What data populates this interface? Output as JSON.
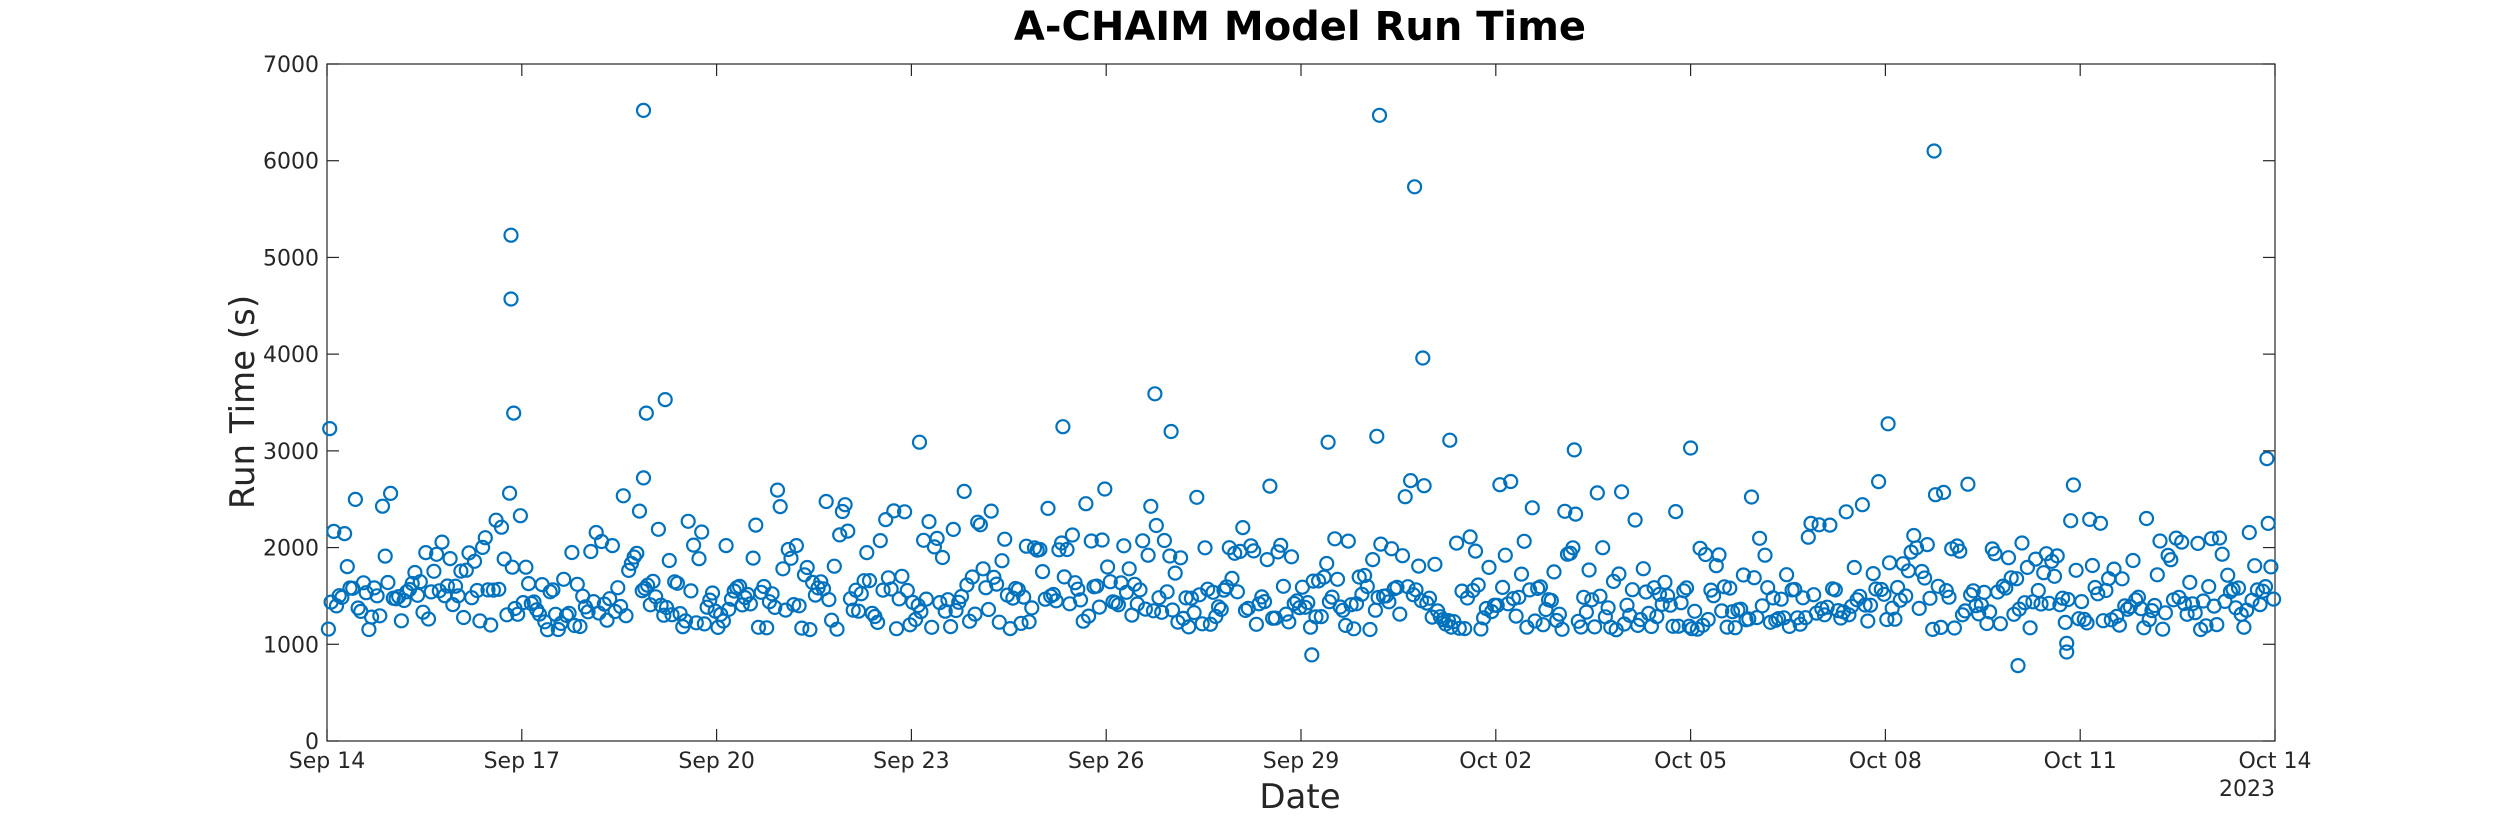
{
  "chart_data": {
    "type": "scatter",
    "title": "A-CHAIM Model Run Time",
    "xlabel": "Date",
    "ylabel": "Run Time (s)",
    "x_axis_kind": "date",
    "xlim": [
      "2023-09-14",
      "2023-10-14"
    ],
    "ylim": [
      0,
      7000
    ],
    "x_ticks": [
      {
        "date": "2023-09-14",
        "label": "Sep 14"
      },
      {
        "date": "2023-09-17",
        "label": "Sep 17"
      },
      {
        "date": "2023-09-20",
        "label": "Sep 20"
      },
      {
        "date": "2023-09-23",
        "label": "Sep 23"
      },
      {
        "date": "2023-09-26",
        "label": "Sep 26"
      },
      {
        "date": "2023-09-29",
        "label": "Sep 29"
      },
      {
        "date": "2023-10-02",
        "label": "Oct 02"
      },
      {
        "date": "2023-10-05",
        "label": "Oct 05"
      },
      {
        "date": "2023-10-08",
        "label": "Oct 08"
      },
      {
        "date": "2023-10-11",
        "label": "Oct 11"
      },
      {
        "date": "2023-10-14",
        "label": "Oct 14"
      }
    ],
    "x_tick_sublabel": "2023",
    "y_ticks": [
      0,
      1000,
      2000,
      3000,
      4000,
      5000,
      6000,
      7000
    ],
    "grid": false,
    "marker": "open-circle",
    "series_color": "#0072BD",
    "notable_points": [
      {
        "x": "2023-09-14 01:00",
        "y": 3230
      },
      {
        "x": "2023-09-16 20:00",
        "y": 5230
      },
      {
        "x": "2023-09-16 20:00",
        "y": 4570
      },
      {
        "x": "2023-09-16 21:00",
        "y": 3390
      },
      {
        "x": "2023-09-18 21:00",
        "y": 6520
      },
      {
        "x": "2023-09-18 22:00",
        "y": 3390
      },
      {
        "x": "2023-09-19 05:00",
        "y": 3530
      },
      {
        "x": "2023-09-18 21:00",
        "y": 2720
      },
      {
        "x": "2023-09-23 03:00",
        "y": 3090
      },
      {
        "x": "2023-09-25 08:00",
        "y": 3250
      },
      {
        "x": "2023-09-26 18:00",
        "y": 3590
      },
      {
        "x": "2023-09-27 00:00",
        "y": 3200
      },
      {
        "x": "2023-09-30 04:00",
        "y": 3150
      },
      {
        "x": "2023-09-30 05:00",
        "y": 6470
      },
      {
        "x": "2023-09-30 18:00",
        "y": 5730
      },
      {
        "x": "2023-09-30 21:00",
        "y": 3960
      },
      {
        "x": "2023-10-01 07:00",
        "y": 3110
      },
      {
        "x": "2023-09-29 10:00",
        "y": 3090
      },
      {
        "x": "2023-10-03 05:00",
        "y": 3010
      },
      {
        "x": "2023-10-05 00:00",
        "y": 3030
      },
      {
        "x": "2023-10-08 01:00",
        "y": 3280
      },
      {
        "x": "2023-10-08 18:00",
        "y": 6100
      },
      {
        "x": "2023-10-13 21:00",
        "y": 2920
      },
      {
        "x": "2023-09-29 04:00",
        "y": 890
      },
      {
        "x": "2023-10-10 01:00",
        "y": 780
      },
      {
        "x": "2023-10-10 19:00",
        "y": 920
      },
      {
        "x": "2023-10-10 19:00",
        "y": 1010
      }
    ],
    "bulk_distribution": {
      "note_values_estimated": true,
      "samples_per_day": 24,
      "typical_min": 1150,
      "typical_median": 1450,
      "typical_max": 2700
    }
  }
}
